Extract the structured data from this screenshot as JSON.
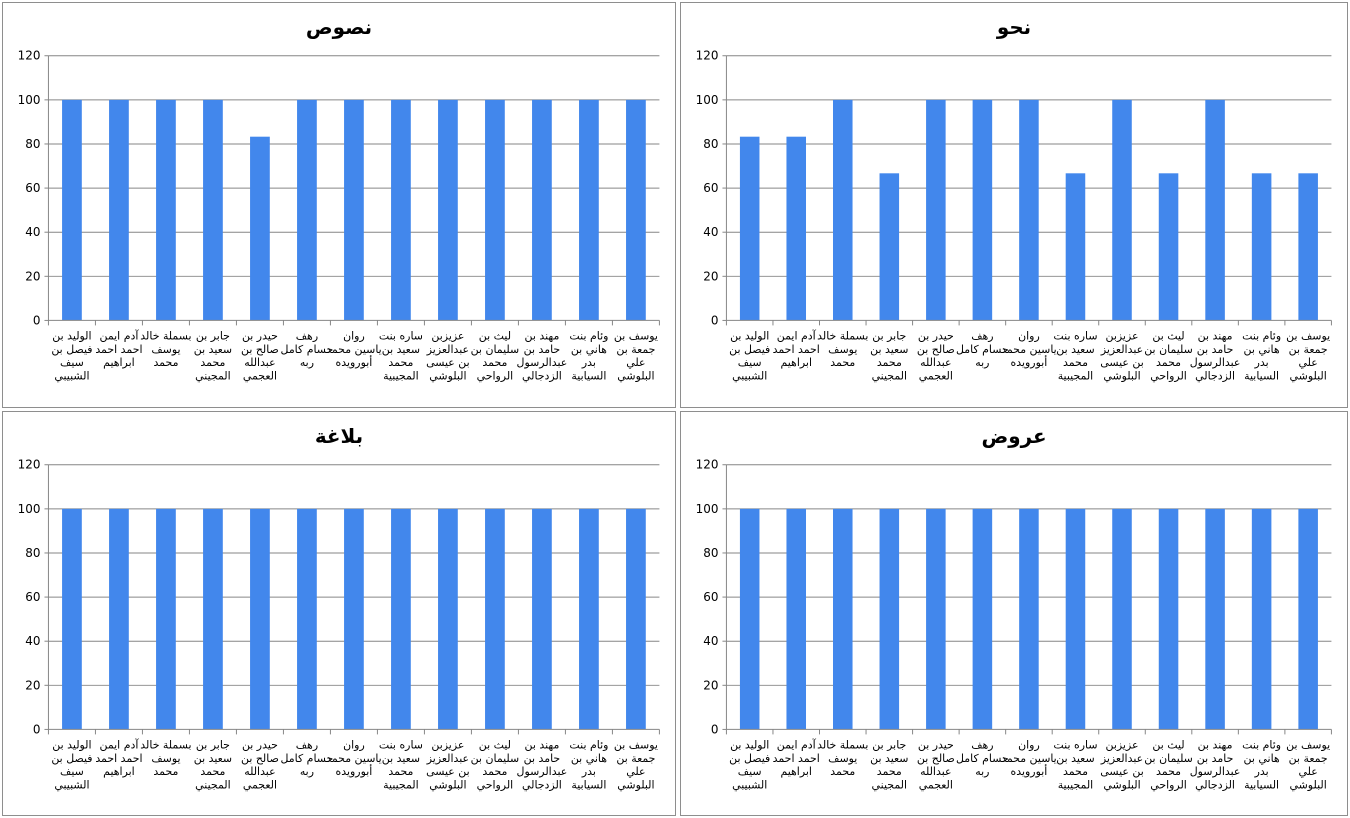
{
  "colors": {
    "bar": "#4287EC",
    "grid": "#868686",
    "axis": "#868686"
  },
  "students": [
    [
      "الوليد بن",
      "فيصل بن",
      "سيف",
      "الشبيبي"
    ],
    [
      "آدم ايمن",
      "احمد احمد",
      "ابراهيم"
    ],
    [
      "بسملة خالد",
      "يوسف",
      "محمد"
    ],
    [
      "جابر بن",
      "سعيد بن",
      "محمد",
      "المجيني"
    ],
    [
      "حيدر بن",
      "صالح بن",
      "عبدالله",
      "العجمي"
    ],
    [
      "رهف",
      "حسام كامل",
      "ربه"
    ],
    [
      "روان",
      "ياسين محمد",
      "أبورويده"
    ],
    [
      "ساره بنت",
      "سعيد بن",
      "محمد",
      "المجيبية"
    ],
    [
      "عزيزبن",
      "عبدالعزيز",
      "بن عيسى",
      "البلوشي"
    ],
    [
      "ليث بن",
      "سليمان بن",
      "محمد",
      "الرواحي"
    ],
    [
      "مهند بن",
      "حامد بن",
      "عبدالرسول",
      "الزدجالي"
    ],
    [
      "وئام بنت",
      "هاني بن",
      "بدر",
      "السيابية"
    ],
    [
      "يوسف بن",
      "جمعة بن",
      "علي",
      "البلوشي"
    ]
  ],
  "chart_data": [
    {
      "type": "bar",
      "title": "نصوص",
      "ylim": [
        0,
        120
      ],
      "yticks": [
        0,
        20,
        40,
        60,
        80,
        100,
        120
      ],
      "grid": true,
      "values": [
        100,
        100,
        100,
        100,
        83.3,
        100,
        100,
        100,
        100,
        100,
        100,
        100,
        100
      ]
    },
    {
      "type": "bar",
      "title": "نحو",
      "ylim": [
        0,
        120
      ],
      "yticks": [
        0,
        20,
        40,
        60,
        80,
        100,
        120
      ],
      "grid": true,
      "values": [
        83.3,
        83.3,
        100,
        66.7,
        100,
        100,
        100,
        66.7,
        100,
        66.7,
        100,
        66.7,
        66.7
      ]
    },
    {
      "type": "bar",
      "title": "بلاغة",
      "ylim": [
        0,
        120
      ],
      "yticks": [
        0,
        20,
        40,
        60,
        80,
        100,
        120
      ],
      "grid": true,
      "values": [
        100,
        100,
        100,
        100,
        100,
        100,
        100,
        100,
        100,
        100,
        100,
        100,
        100
      ]
    },
    {
      "type": "bar",
      "title": "عروض",
      "ylim": [
        0,
        120
      ],
      "yticks": [
        0,
        20,
        40,
        60,
        80,
        100,
        120
      ],
      "grid": true,
      "values": [
        100,
        100,
        100,
        100,
        100,
        100,
        100,
        100,
        100,
        100,
        100,
        100,
        100
      ]
    }
  ]
}
